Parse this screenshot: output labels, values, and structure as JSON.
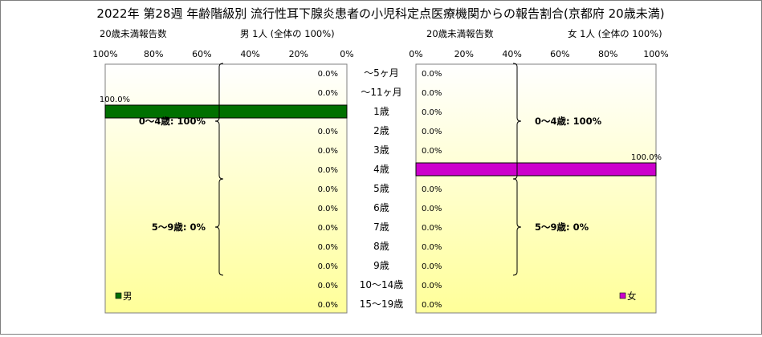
{
  "title": "2022年 第28週 年齢階級別 流行性耳下腺炎患者の小児科定点医療機関からの報告割合(京都府 20歳未満)",
  "colors": {
    "male_bar": "#007000",
    "female_bar": "#cc00cc",
    "plot_top": "#ffffff",
    "plot_bottom": "#ffff99"
  },
  "chart_data": [
    {
      "type": "bar",
      "side": "male",
      "subtitle_left": "20歳未満報告数",
      "subtitle_right": "男 1人 (全体の 100%)",
      "legend": "男",
      "legend_position": "bottom-left",
      "axis_orientation": "reversed",
      "xlim": [
        0,
        100
      ],
      "xticks": [
        "100%",
        "80%",
        "60%",
        "40%",
        "20%",
        "0%"
      ],
      "categories": [
        "～5ヶ月",
        "～11ヶ月",
        "1歳",
        "2歳",
        "3歳",
        "4歳",
        "5歳",
        "6歳",
        "7歳",
        "8歳",
        "9歳",
        "10～14歳",
        "15～19歳"
      ],
      "values": [
        0,
        0,
        100,
        0,
        0,
        0,
        0,
        0,
        0,
        0,
        0,
        0,
        0
      ],
      "value_labels": [
        "0.0%",
        "0.0%",
        "100.0%",
        "0.0%",
        "0.0%",
        "0.0%",
        "0.0%",
        "0.0%",
        "0.0%",
        "0.0%",
        "0.0%",
        "0.0%",
        "0.0%"
      ],
      "groups": [
        {
          "label": "0～4歳: 100%",
          "from": 0,
          "to": 5
        },
        {
          "label": "5～9歳: 0%",
          "from": 6,
          "to": 10
        }
      ]
    },
    {
      "type": "bar",
      "side": "female",
      "subtitle_left": "20歳未満報告数",
      "subtitle_right": "女 1人 (全体の 100%)",
      "legend": "女",
      "legend_position": "bottom-right",
      "axis_orientation": "normal",
      "xlim": [
        0,
        100
      ],
      "xticks": [
        "0%",
        "20%",
        "40%",
        "60%",
        "80%",
        "100%"
      ],
      "categories": [
        "～5ヶ月",
        "～11ヶ月",
        "1歳",
        "2歳",
        "3歳",
        "4歳",
        "5歳",
        "6歳",
        "7歳",
        "8歳",
        "9歳",
        "10～14歳",
        "15～19歳"
      ],
      "values": [
        0,
        0,
        0,
        0,
        0,
        100,
        0,
        0,
        0,
        0,
        0,
        0,
        0
      ],
      "value_labels": [
        "0.0%",
        "0.0%",
        "0.0%",
        "0.0%",
        "0.0%",
        "100.0%",
        "0.0%",
        "0.0%",
        "0.0%",
        "0.0%",
        "0.0%",
        "0.0%",
        "0.0%"
      ],
      "groups": [
        {
          "label": "0～4歳: 100%",
          "from": 0,
          "to": 5
        },
        {
          "label": "5～9歳: 0%",
          "from": 6,
          "to": 10
        }
      ]
    }
  ]
}
